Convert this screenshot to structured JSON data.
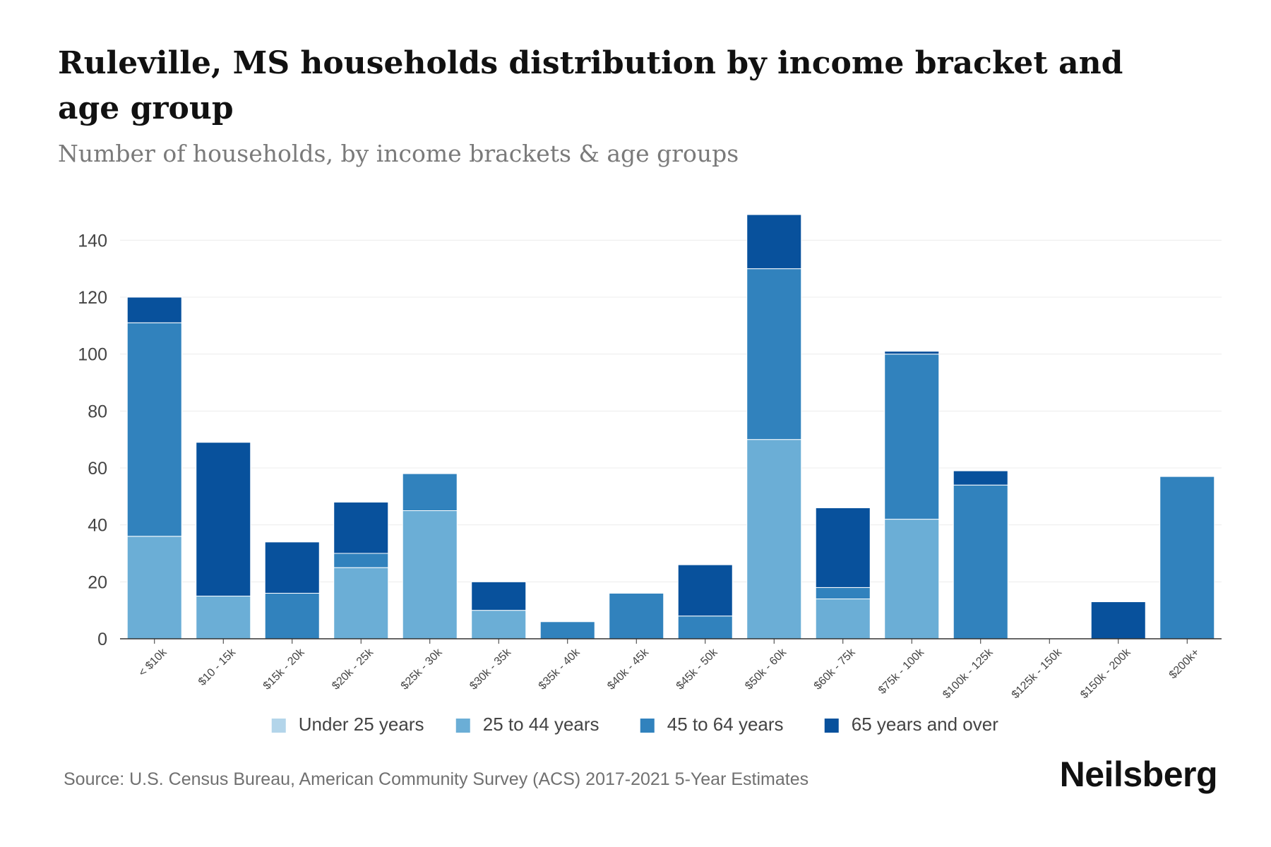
{
  "header": {
    "title": "Ruleville, MS households distribution by income bracket and age group",
    "subtitle": "Number of households, by income brackets & age groups"
  },
  "footer": {
    "source": "Source: U.S. Census Bureau, American Community Survey (ACS) 2017-2021 5-Year Estimates",
    "brand": "Neilsberg"
  },
  "chart_data": {
    "type": "bar",
    "stacked": true,
    "title": "Ruleville, MS households distribution by income bracket and age group",
    "subtitle": "Number of households, by income brackets & age groups",
    "xlabel": "",
    "ylabel": "",
    "ylim": [
      0,
      150
    ],
    "yticks": [
      0,
      20,
      40,
      60,
      80,
      100,
      120,
      140
    ],
    "grid": true,
    "legend_position": "bottom",
    "categories": [
      "< $10k",
      "$10 - 15k",
      "$15k - 20k",
      "$20k - 25k",
      "$25k - 30k",
      "$30k - 35k",
      "$35k - 40k",
      "$40k - 45k",
      "$45k - 50k",
      "$50k - 60k",
      "$60k - 75k",
      "$75k - 100k",
      "$100k - 125k",
      "$125k - 150k",
      "$150k - 200k",
      "$200k+"
    ],
    "series": [
      {
        "name": "Under 25 years",
        "color": "#b3d5ea",
        "values": [
          0,
          0,
          0,
          0,
          0,
          0,
          0,
          0,
          0,
          0,
          0,
          0,
          0,
          0,
          0,
          0
        ]
      },
      {
        "name": "25 to 44 years",
        "color": "#6baed6",
        "values": [
          36,
          15,
          0,
          25,
          45,
          10,
          0,
          0,
          0,
          70,
          14,
          42,
          0,
          0,
          0,
          0
        ]
      },
      {
        "name": "45 to 64 years",
        "color": "#3182bd",
        "values": [
          75,
          0,
          16,
          5,
          13,
          0,
          6,
          16,
          8,
          60,
          4,
          58,
          54,
          0,
          0,
          57
        ]
      },
      {
        "name": "65 years and over",
        "color": "#08519c",
        "values": [
          9,
          54,
          18,
          18,
          0,
          10,
          0,
          0,
          18,
          19,
          28,
          1,
          5,
          0,
          13,
          0
        ]
      }
    ]
  }
}
